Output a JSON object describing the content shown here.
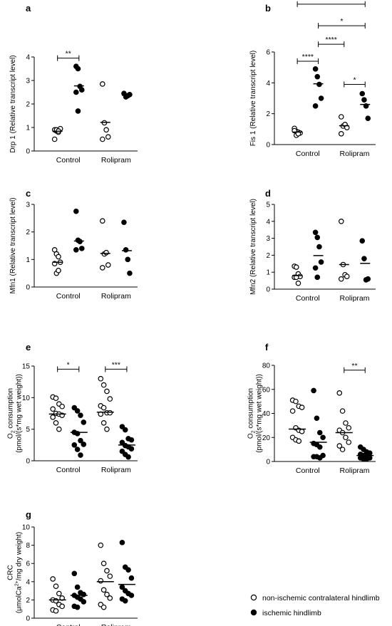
{
  "legend": {
    "placement": "bottom-right",
    "items": [
      {
        "label": "non-ischemic contralateral hindlimb",
        "marker": "open-circle"
      },
      {
        "label": "ischemic hindlimb",
        "marker": "filled-circle"
      }
    ]
  },
  "chart_data": [
    {
      "panel": "a",
      "type": "scatter",
      "ylabel": "Drp 1 (Relative transcript level)",
      "ylim": [
        0,
        4
      ],
      "yticks": [
        "0",
        "1",
        "2",
        "3",
        "4"
      ],
      "categories": [
        "Control",
        "Rolipram"
      ],
      "groups": [
        {
          "name": "non-ischemic",
          "filled": false,
          "values": [
            [
              0.9,
              0.85,
              0.8,
              0.95,
              0.5,
              0.9,
              0.85
            ],
            [
              2.85,
              1.2,
              0.9,
              0.6,
              0.5
            ]
          ],
          "means": [
            0.84,
            1.22
          ]
        },
        {
          "name": "ischemic",
          "filled": true,
          "values": [
            [
              3.6,
              3.5,
              2.75,
              2.6,
              2.5,
              1.7
            ],
            [
              2.45,
              2.3,
              2.35,
              2.4
            ]
          ],
          "means": [
            2.77,
            2.37
          ]
        }
      ],
      "brackets": [
        {
          "label": "**",
          "from": [
            0,
            0
          ],
          "to": [
            0,
            1
          ],
          "y": 3.95
        }
      ]
    },
    {
      "panel": "b",
      "type": "scatter",
      "ylabel": "Fis 1 (Relative transcript level)",
      "ylim": [
        0,
        6
      ],
      "yticks": [
        "0",
        "2",
        "4",
        "6"
      ],
      "categories": [
        "Control",
        "Rolipram"
      ],
      "groups": [
        {
          "name": "non-ischemic",
          "filled": false,
          "values": [
            [
              1.05,
              0.85,
              0.8,
              0.75,
              0.9,
              0.6,
              0.7
            ],
            [
              1.8,
              1.2,
              1.3,
              1.1,
              0.7
            ]
          ],
          "means": [
            0.81,
            1.22
          ]
        },
        {
          "name": "ischemic",
          "filled": true,
          "values": [
            [
              4.9,
              4.4,
              3.9,
              3.0,
              2.5
            ],
            [
              3.3,
              2.9,
              2.5,
              1.7
            ]
          ],
          "means": [
            3.94,
            2.6
          ]
        }
      ],
      "brackets": [
        {
          "label": "****",
          "from": [
            0,
            0
          ],
          "to": [
            0,
            1
          ],
          "y": 5.4
        },
        {
          "label": "*",
          "from": [
            1,
            0
          ],
          "to": [
            1,
            1
          ],
          "y": 3.9
        },
        {
          "label": "****",
          "from": [
            0,
            1
          ],
          "to": [
            1,
            0
          ],
          "y": 6.5
        },
        {
          "label": "*",
          "from": [
            0,
            1
          ],
          "to": [
            1,
            1
          ],
          "y": 7.7
        },
        {
          "label": "**",
          "from": [
            0,
            0
          ],
          "to": [
            1,
            1
          ],
          "y": 9.1
        }
      ]
    },
    {
      "panel": "c",
      "type": "scatter",
      "ylabel": "Mfn1 (Relative transcript level)",
      "ylim": [
        0,
        3
      ],
      "yticks": [
        "0",
        "1",
        "2",
        "3"
      ],
      "categories": [
        "Control",
        "Rolipram"
      ],
      "groups": [
        {
          "name": "non-ischemic",
          "filled": false,
          "values": [
            [
              1.35,
              1.2,
              1.1,
              0.9,
              0.85,
              0.5,
              0.6
            ],
            [
              2.4,
              1.2,
              1.25,
              0.8,
              0.7
            ]
          ],
          "means": [
            0.9,
            1.22
          ]
        },
        {
          "name": "ischemic",
          "filled": true,
          "values": [
            [
              2.75,
              1.7,
              1.65,
              1.4,
              1.35
            ],
            [
              2.35,
              1.35,
              1.0,
              0.5
            ]
          ],
          "means": [
            1.67,
            1.32
          ]
        }
      ]
    },
    {
      "panel": "d",
      "type": "scatter",
      "ylabel": "Mfn2 (Relative transcript level)",
      "ylim": [
        0,
        5
      ],
      "yticks": [
        "0",
        "1",
        "2",
        "3",
        "4",
        "5"
      ],
      "categories": [
        "Control",
        "Rolipram"
      ],
      "groups": [
        {
          "name": "non-ischemic",
          "filled": false,
          "values": [
            [
              1.35,
              1.3,
              0.9,
              0.75,
              0.7,
              0.7,
              0.35
            ],
            [
              4.0,
              1.45,
              0.85,
              0.75,
              0.6
            ]
          ],
          "means": [
            0.8,
            1.45
          ]
        },
        {
          "name": "ischemic",
          "filled": true,
          "values": [
            [
              3.35,
              3.05,
              2.5,
              1.6,
              1.25,
              0.7
            ],
            [
              2.85,
              1.8,
              0.55,
              0.6
            ]
          ],
          "means": [
            1.98,
            1.52
          ]
        }
      ]
    },
    {
      "panel": "e",
      "type": "scatter",
      "ylabel": "O2 consumption (pmol/(s*mg wet weight))",
      "ylim": [
        0,
        15
      ],
      "yticks": [
        "0",
        "5",
        "10",
        "15"
      ],
      "categories": [
        "Control",
        "Rolipram"
      ],
      "groups": [
        {
          "name": "non-ischemic",
          "filled": false,
          "values": [
            [
              10.1,
              9.9,
              9.0,
              8.6,
              8.2,
              7.5,
              7.4,
              7.2,
              6.9,
              6.0,
              5.0
            ],
            [
              13.0,
              12.0,
              11.0,
              9.8,
              8.7,
              8.4,
              7.6,
              7.6,
              7.4,
              6.0,
              5.0
            ]
          ],
          "means": [
            7.4,
            7.7
          ]
        },
        {
          "name": "ischemic",
          "filled": true,
          "values": [
            [
              8.4,
              7.9,
              7.2,
              6.1,
              4.5,
              4.3,
              3.2,
              2.6,
              2.5,
              1.8,
              0.9
            ],
            [
              5.4,
              4.9,
              3.5,
              3.3,
              2.9,
              2.4,
              2.2,
              1.9,
              1.5,
              1.0,
              0.6
            ]
          ],
          "means": [
            4.5,
            2.5
          ]
        }
      ],
      "brackets": [
        {
          "label": "*",
          "from": [
            0,
            0
          ],
          "to": [
            0,
            1
          ],
          "y": 14.5
        },
        {
          "label": "***",
          "from": [
            1,
            0
          ],
          "to": [
            1,
            1
          ],
          "y": 14.5
        }
      ]
    },
    {
      "panel": "f",
      "type": "scatter",
      "ylabel": "O2 consumption (pmol/(s*mg wet weight))",
      "ylim": [
        0,
        80
      ],
      "yticks": [
        "0",
        "20",
        "40",
        "60",
        "80"
      ],
      "categories": [
        "Control",
        "Rolipram"
      ],
      "groups": [
        {
          "name": "non-ischemic",
          "filled": false,
          "values": [
            [
              51,
              50,
              46,
              45,
              42,
              28,
              26,
              25,
              20,
              18,
              17
            ],
            [
              57,
              42,
              32,
              28,
              26,
              24,
              20,
              16,
              13,
              10
            ]
          ],
          "means": [
            27,
            24
          ]
        },
        {
          "name": "ischemic",
          "filled": true,
          "values": [
            [
              59,
              36,
              24,
              20,
              15,
              14,
              12,
              5,
              4,
              4,
              3
            ],
            [
              12,
              10,
              8,
              7,
              6,
              5,
              4,
              3,
              3,
              2,
              2
            ]
          ],
          "means": [
            16,
            5
          ]
        }
      ],
      "brackets": [
        {
          "label": "**",
          "from": [
            1,
            0
          ],
          "to": [
            1,
            1
          ],
          "y": 76
        }
      ]
    },
    {
      "panel": "g",
      "type": "scatter",
      "ylabel": "CRC (μmolCa2+/mg dry weight)",
      "ylim": [
        0,
        10
      ],
      "yticks": [
        "0",
        "2",
        "4",
        "6",
        "8",
        "10"
      ],
      "categories": [
        "Control",
        "Rolipram"
      ],
      "groups": [
        {
          "name": "non-ischemic",
          "filled": false,
          "values": [
            [
              4.3,
              3.5,
              2.7,
              2.2,
              2.0,
              1.9,
              1.5,
              1.3,
              0.9,
              0.8
            ],
            [
              8.0,
              6.0,
              5.2,
              4.6,
              4.1,
              3.1,
              2.6,
              2.2,
              1.5,
              1.2
            ]
          ],
          "means": [
            2.0,
            4.0
          ]
        },
        {
          "name": "ischemic",
          "filled": true,
          "values": [
            [
              4.9,
              3.4,
              2.8,
              2.6,
              2.5,
              2.3,
              2.1,
              1.8,
              1.3,
              1.2
            ],
            [
              8.3,
              5.6,
              5.3,
              4.4,
              3.4,
              3.0,
              2.7,
              2.5,
              2.1,
              1.9
            ]
          ],
          "means": [
            2.5,
            3.7
          ]
        }
      ]
    }
  ]
}
